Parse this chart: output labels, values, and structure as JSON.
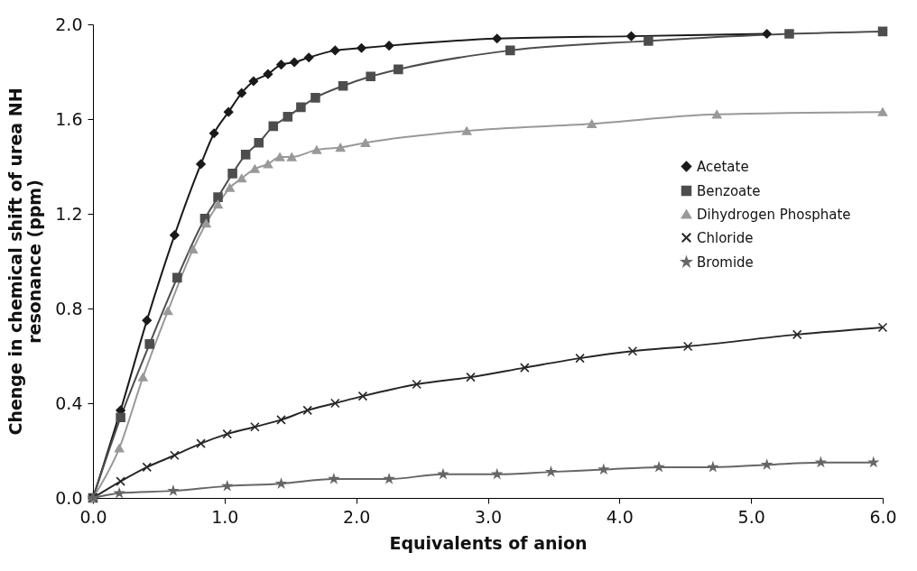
{
  "chart_data": {
    "type": "line",
    "xlabel": "Equivalents of anion",
    "ylabel": "Chenge in chemical shift of urea NH\nresonance (ppm)",
    "xlim": [
      0,
      6
    ],
    "ylim": [
      0,
      2
    ],
    "xticks": [
      {
        "value": 0,
        "label": "0.0"
      },
      {
        "value": 1,
        "label": "1.0"
      },
      {
        "value": 2,
        "label": "2.0"
      },
      {
        "value": 3,
        "label": "3.0"
      },
      {
        "value": 4,
        "label": "4.0"
      },
      {
        "value": 5,
        "label": "5.0"
      },
      {
        "value": 6,
        "label": "6.0"
      }
    ],
    "yticks": [
      {
        "value": 0,
        "label": "0.0"
      },
      {
        "value": 0.4,
        "label": "0.4"
      },
      {
        "value": 0.8,
        "label": "0.8"
      },
      {
        "value": 1.2,
        "label": "1.2"
      },
      {
        "value": 1.6,
        "label": "1.6"
      },
      {
        "value": 2,
        "label": "2.0"
      }
    ],
    "grid": false,
    "legend": "right",
    "line_style": "solid",
    "series": [
      {
        "name": "Acetate",
        "color": "#1a1a1a",
        "marker": "diamond",
        "x": [
          0,
          0.21,
          0.41,
          0.62,
          0.82,
          0.92,
          1.03,
          1.13,
          1.22,
          1.33,
          1.43,
          1.53,
          1.64,
          1.84,
          2.04,
          2.25,
          3.07,
          4.09,
          5.12
        ],
        "values": [
          0,
          0.37,
          0.75,
          1.11,
          1.41,
          1.54,
          1.63,
          1.71,
          1.76,
          1.79,
          1.83,
          1.84,
          1.86,
          1.89,
          1.9,
          1.91,
          1.94,
          1.95,
          1.96
        ]
      },
      {
        "name": "Benzoate",
        "color": "#4d4d4d",
        "marker": "square",
        "x": [
          0,
          0.21,
          0.43,
          0.64,
          0.85,
          0.95,
          1.06,
          1.16,
          1.26,
          1.37,
          1.48,
          1.58,
          1.69,
          1.9,
          2.11,
          2.32,
          3.17,
          4.22,
          5.29,
          6.0
        ],
        "values": [
          0,
          0.34,
          0.65,
          0.93,
          1.18,
          1.27,
          1.37,
          1.45,
          1.5,
          1.57,
          1.61,
          1.65,
          1.69,
          1.74,
          1.78,
          1.81,
          1.89,
          1.93,
          1.96,
          1.97
        ]
      },
      {
        "name": "Dihydrogen Phosphate",
        "color": "#999999",
        "marker": "triangle",
        "x": [
          0,
          0.2,
          0.38,
          0.57,
          0.76,
          0.86,
          0.95,
          1.04,
          1.13,
          1.23,
          1.33,
          1.42,
          1.51,
          1.7,
          1.88,
          2.07,
          2.84,
          3.79,
          4.74,
          6.0
        ],
        "values": [
          0,
          0.21,
          0.51,
          0.79,
          1.05,
          1.16,
          1.24,
          1.31,
          1.35,
          1.39,
          1.41,
          1.44,
          1.44,
          1.47,
          1.48,
          1.5,
          1.55,
          1.58,
          1.62,
          1.63
        ]
      },
      {
        "name": "Chloride",
        "color": "#262626",
        "marker": "cross",
        "x": [
          0,
          0.21,
          0.41,
          0.62,
          0.82,
          1.02,
          1.23,
          1.43,
          1.63,
          1.84,
          2.05,
          2.46,
          2.87,
          3.28,
          3.7,
          4.1,
          4.52,
          5.35,
          6.0
        ],
        "values": [
          0,
          0.07,
          0.13,
          0.18,
          0.23,
          0.27,
          0.3,
          0.33,
          0.37,
          0.4,
          0.43,
          0.48,
          0.51,
          0.55,
          0.59,
          0.62,
          0.64,
          0.69,
          0.72
        ]
      },
      {
        "name": "Bromide",
        "color": "#666666",
        "marker": "star",
        "x": [
          0,
          0.2,
          0.61,
          1.02,
          1.43,
          1.83,
          2.25,
          2.66,
          3.07,
          3.48,
          3.88,
          4.3,
          4.71,
          5.12,
          5.53,
          5.93
        ],
        "values": [
          0,
          0.02,
          0.03,
          0.05,
          0.06,
          0.08,
          0.08,
          0.1,
          0.1,
          0.11,
          0.12,
          0.13,
          0.13,
          0.14,
          0.15,
          0.15
        ]
      }
    ]
  }
}
